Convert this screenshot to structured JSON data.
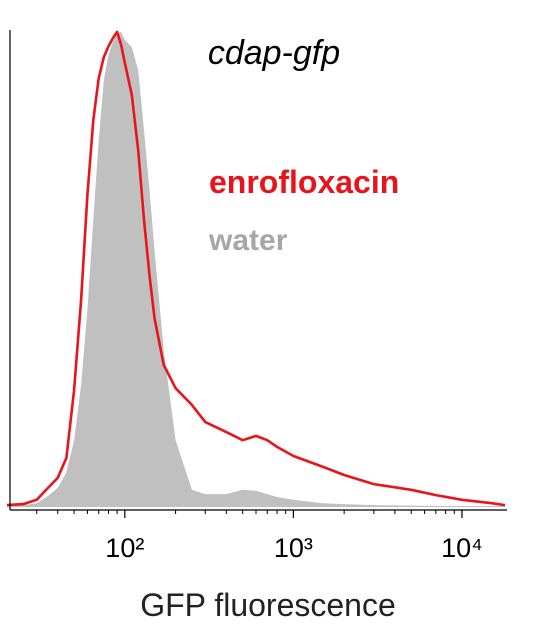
{
  "chart_data": {
    "type": "area_line",
    "title": "cdap-gfp",
    "xlabel": "GFP fluorescence",
    "xscale": "log",
    "xlim": [
      20,
      18000
    ],
    "ylim": [
      0,
      100
    ],
    "xticks": [
      {
        "value": 100,
        "label": "10²"
      },
      {
        "value": 1000,
        "label": "10³"
      },
      {
        "value": 10000,
        "label": "10⁴"
      }
    ],
    "xminor_ticks": [
      30,
      40,
      50,
      60,
      70,
      80,
      90,
      200,
      300,
      400,
      500,
      600,
      700,
      800,
      900,
      2000,
      3000,
      4000,
      5000,
      6000,
      7000,
      8000,
      9000
    ],
    "x": [
      20,
      25,
      30,
      35,
      40,
      45,
      50,
      55,
      60,
      65,
      70,
      75,
      80,
      85,
      90,
      95,
      100,
      110,
      120,
      130,
      140,
      150,
      170,
      200,
      250,
      300,
      400,
      500,
      600,
      700,
      800,
      1000,
      1500,
      2000,
      3000,
      5000,
      7000,
      10000,
      15000,
      18000
    ],
    "series": [
      {
        "name": "water",
        "color": "#c0c0c0",
        "style": "area",
        "values": [
          0.2,
          0.4,
          0.8,
          2.3,
          4.0,
          7.3,
          14.0,
          25.6,
          41.3,
          60.2,
          76.9,
          89.5,
          94.8,
          97.5,
          99.2,
          99.6,
          97.9,
          96.4,
          91.6,
          79.0,
          66.5,
          53.9,
          32.9,
          14.0,
          3.6,
          2.7,
          2.7,
          3.6,
          3.4,
          2.7,
          2.1,
          1.5,
          0.8,
          0.6,
          0.4,
          0.3,
          0.2,
          0.2,
          0.2,
          0.2
        ]
      },
      {
        "name": "enrofloxacin",
        "color": "#e8141b",
        "style": "line",
        "values": [
          0.4,
          0.6,
          1.5,
          4.0,
          6.1,
          10.3,
          24.5,
          43.4,
          65.4,
          81.1,
          89.9,
          94.3,
          96.6,
          98.3,
          99.6,
          96.9,
          93.1,
          86.4,
          74.8,
          60.2,
          48.6,
          39.6,
          29.8,
          24.9,
          21.4,
          17.8,
          15.7,
          14.0,
          14.9,
          14.0,
          12.6,
          10.7,
          8.4,
          6.7,
          4.8,
          3.6,
          2.5,
          1.5,
          0.8,
          0.4
        ]
      }
    ]
  }
}
